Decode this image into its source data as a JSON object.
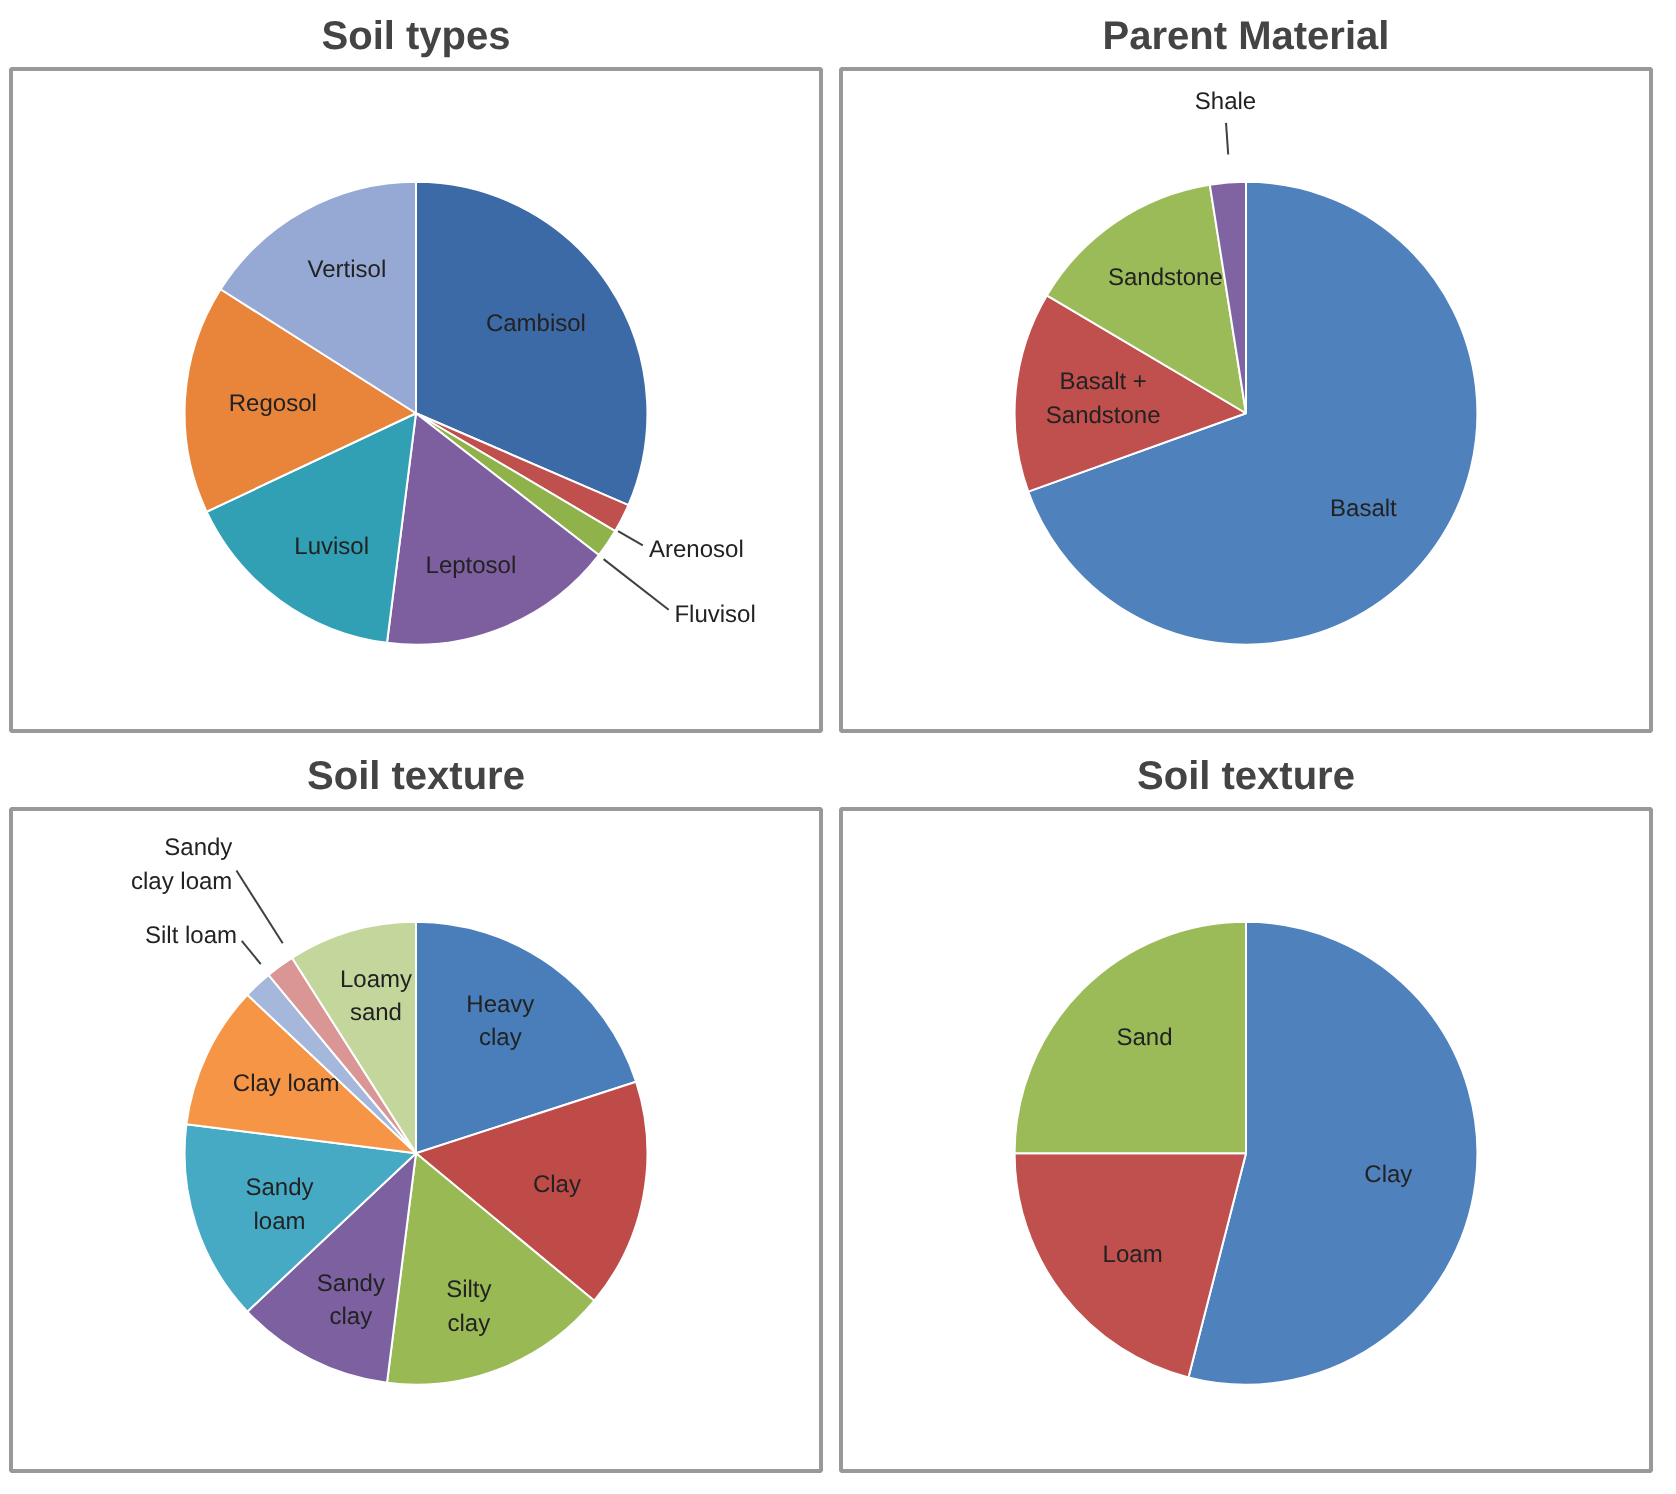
{
  "chart_data": [
    {
      "type": "pie",
      "title": "Soil types",
      "categories": [
        "Cambisol",
        "Arenosol",
        "Fluvisol",
        "Leptosol",
        "Luvisol",
        "Regosol",
        "Vertisol"
      ],
      "values": [
        31.5,
        2,
        2,
        16.5,
        16,
        16,
        16
      ],
      "colors": [
        "#3c6aa6",
        "#c0504d",
        "#8fb24a",
        "#7d5fa0",
        "#31a0b5",
        "#e8853a",
        "#95a9d4"
      ]
    },
    {
      "type": "pie",
      "title": "Parent Material",
      "categories": [
        "Basalt",
        "Basalt + Sandstone",
        "Sandstone",
        "Shale"
      ],
      "values": [
        69.5,
        14,
        14,
        2.5
      ],
      "colors": [
        "#4f81bd",
        "#c0504d",
        "#9bbb59",
        "#8064a2"
      ]
    },
    {
      "type": "pie",
      "title": "Soil texture",
      "categories": [
        "Heavy clay",
        "Clay",
        "Silty clay",
        "Sandy clay",
        "Sandy loam",
        "Clay loam",
        "Silt loam",
        "Sandy clay loam",
        "Loamy sand"
      ],
      "values": [
        20,
        16,
        16,
        11,
        14,
        10,
        2,
        2,
        9
      ],
      "colors": [
        "#4a7ebb",
        "#be4b48",
        "#98b954",
        "#7d60a0",
        "#46aac5",
        "#f69545",
        "#a5b8dc",
        "#d99694",
        "#c3d69b"
      ]
    },
    {
      "type": "pie",
      "title": "Soil texture",
      "categories": [
        "Clay",
        "Loam",
        "Sand"
      ],
      "values": [
        54,
        21,
        25
      ],
      "colors": [
        "#4f81bd",
        "#c0504d",
        "#9bbb59"
      ]
    }
  ]
}
